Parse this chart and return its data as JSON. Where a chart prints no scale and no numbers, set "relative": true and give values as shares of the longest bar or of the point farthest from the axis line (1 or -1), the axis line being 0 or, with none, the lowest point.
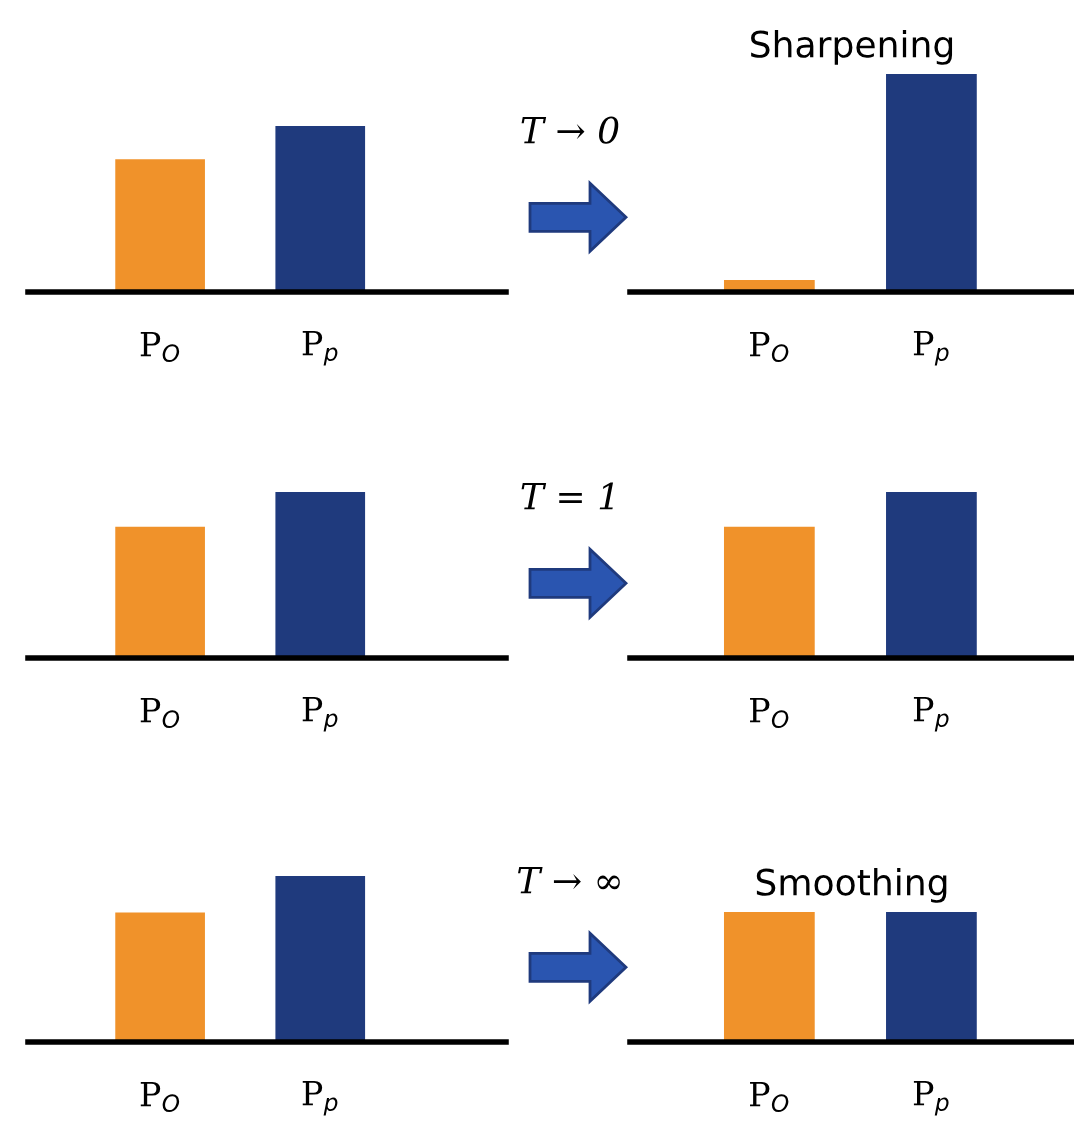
{
  "chart_data": [
    {
      "type": "bar",
      "relative": true,
      "categories": [
        "P$_{O}$",
        "P$_{p}$"
      ],
      "values": [
        0.8,
        1
      ],
      "colors": [
        "#f0922a",
        "#1f3a7d"
      ]
    },
    {
      "type": "bar",
      "relative": true,
      "title": "Sharpening",
      "annotations": [
        "T → 0"
      ],
      "categories": [
        "P$_{O}$",
        "P$_{p}$"
      ],
      "values": [
        0.055,
        1
      ],
      "colors": [
        "#f0922a",
        "#1f3a7d"
      ]
    },
    {
      "type": "bar",
      "relative": true,
      "categories": [
        "P$_{O}$",
        "P$_{p}$"
      ],
      "values": [
        0.79,
        1
      ],
      "colors": [
        "#f0922a",
        "#1f3a7d"
      ]
    },
    {
      "type": "bar",
      "relative": true,
      "annotations": [
        "T = 1"
      ],
      "categories": [
        "P$_{O}$",
        "P$_{p}$"
      ],
      "values": [
        0.79,
        1
      ],
      "colors": [
        "#f0922a",
        "#1f3a7d"
      ]
    },
    {
      "type": "bar",
      "relative": true,
      "categories": [
        "P$_{O}$",
        "P$_{p}$"
      ],
      "values": [
        0.78,
        1
      ],
      "colors": [
        "#f0922a",
        "#1f3a7d"
      ]
    },
    {
      "type": "bar",
      "relative": true,
      "title": "Smoothing",
      "annotations": [
        "T → ∞"
      ],
      "categories": [
        "P$_{O}$",
        "P$_{p}$"
      ],
      "values": [
        1,
        1
      ],
      "colors": [
        "#f0922a",
        "#1f3a7d"
      ]
    }
  ]
}
